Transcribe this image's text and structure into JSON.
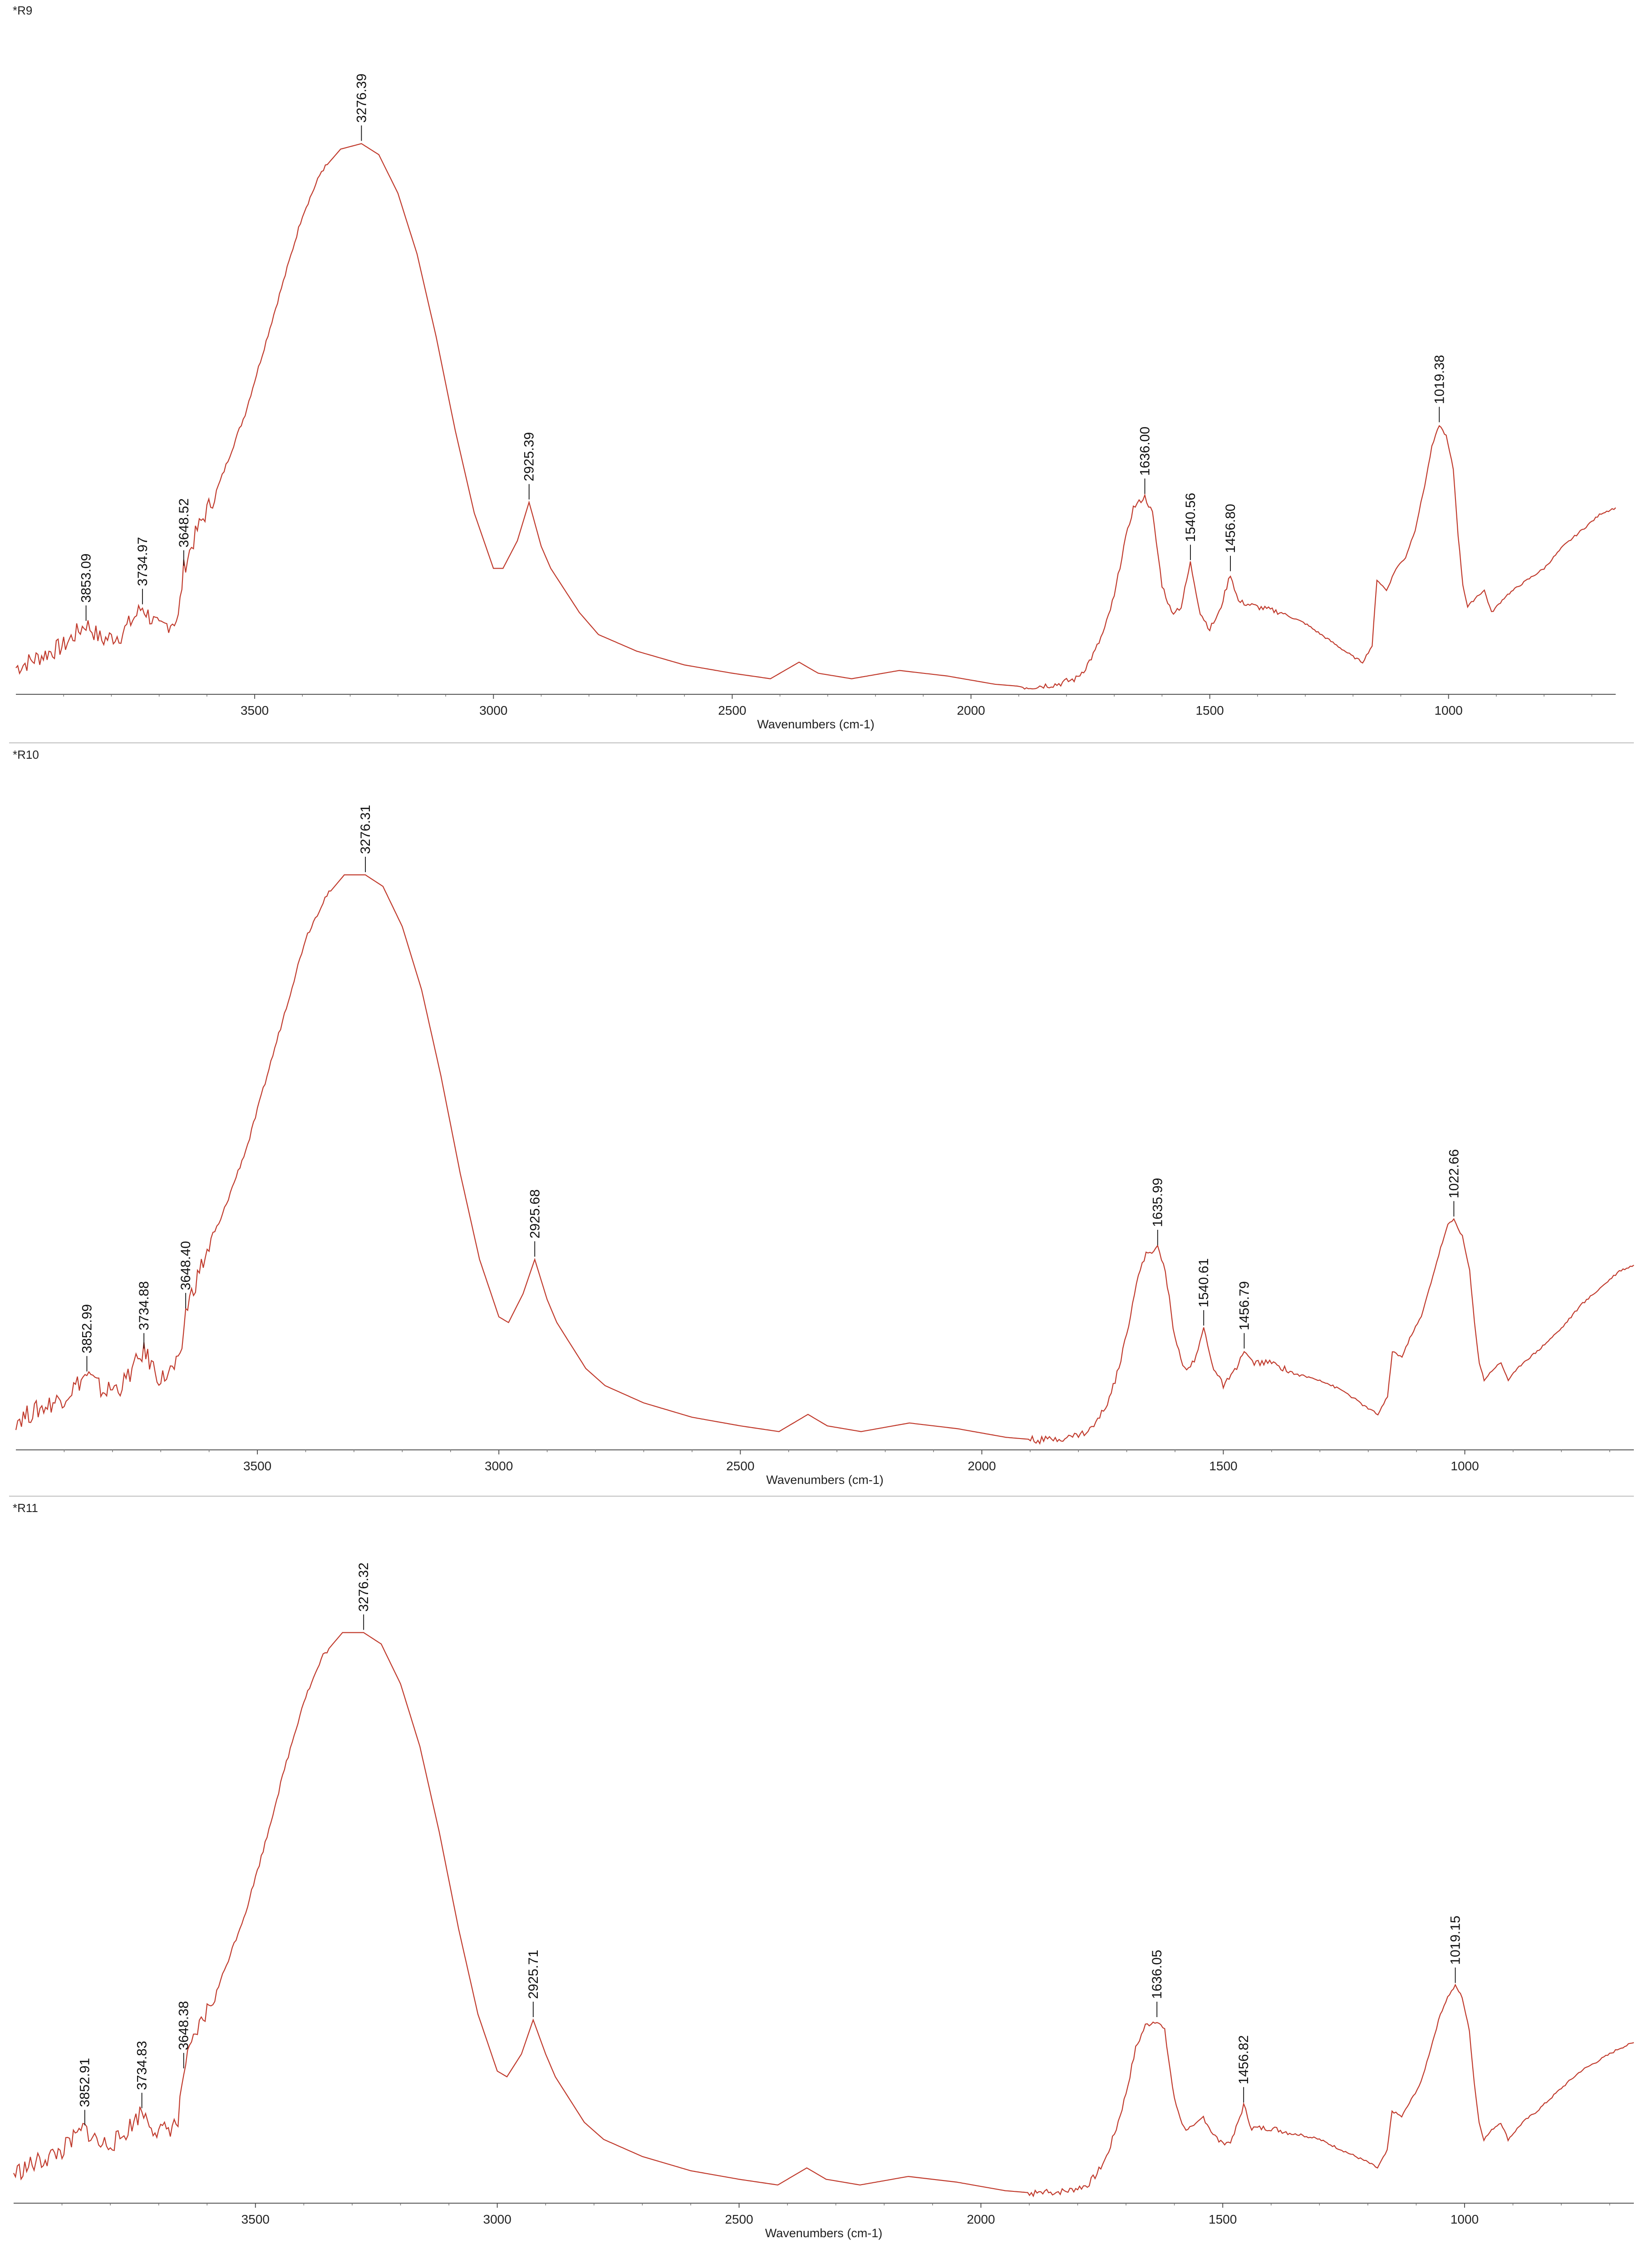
{
  "chart_data": [
    {
      "type": "line",
      "title": "*R9",
      "xlabel": "Wavenumbers (cm-1)",
      "ylabel": "",
      "x_ticks": [
        3500,
        3000,
        2500,
        2000,
        1500,
        1000
      ],
      "xlim": [
        4000,
        650
      ],
      "x_reversed": true,
      "grid": false,
      "line_color": "#c0392b",
      "series": [
        {
          "x": [
            4000,
            3950,
            3900,
            3853.09,
            3820,
            3780,
            3734.97,
            3700,
            3660,
            3648.52,
            3620,
            3580,
            3520,
            3480,
            3440,
            3400,
            3360,
            3320,
            3276.39,
            3240,
            3200,
            3160,
            3120,
            3080,
            3040,
            3000,
            2980,
            2950,
            2925.39,
            2900,
            2880,
            2850,
            2820,
            2780,
            2700,
            2600,
            2500,
            2420,
            2380,
            2360,
            2320,
            2250,
            2150,
            2050,
            1950,
            1880,
            1820,
            1780,
            1760,
            1740,
            1720,
            1700,
            1680,
            1660,
            1636.0,
            1620,
            1600,
            1580,
            1560,
            1540.56,
            1520,
            1500,
            1480,
            1456.8,
            1440,
            1400,
            1350,
            1300,
            1250,
            1200,
            1180,
            1160,
            1150,
            1130,
            1110,
            1090,
            1070,
            1050,
            1035,
            1019.38,
            1005,
            990,
            980,
            970,
            960,
            940,
            925,
            910,
            880,
            850,
            800,
            760,
            720,
            680,
            650
          ],
          "y": [
            0.02,
            0.04,
            0.06,
            0.1,
            0.07,
            0.08,
            0.13,
            0.09,
            0.11,
            0.2,
            0.27,
            0.34,
            0.48,
            0.6,
            0.72,
            0.84,
            0.92,
            0.96,
            0.97,
            0.95,
            0.88,
            0.77,
            0.62,
            0.45,
            0.3,
            0.2,
            0.2,
            0.25,
            0.32,
            0.24,
            0.2,
            0.16,
            0.12,
            0.08,
            0.05,
            0.025,
            0.01,
            0.0,
            0.02,
            0.03,
            0.01,
            0.0,
            0.015,
            0.005,
            -0.01,
            -0.015,
            -0.01,
            0.0,
            0.02,
            0.05,
            0.09,
            0.15,
            0.24,
            0.31,
            0.33,
            0.3,
            0.17,
            0.12,
            0.13,
            0.21,
            0.12,
            0.09,
            0.12,
            0.19,
            0.14,
            0.13,
            0.12,
            0.1,
            0.07,
            0.04,
            0.03,
            0.06,
            0.18,
            0.16,
            0.2,
            0.22,
            0.27,
            0.35,
            0.42,
            0.46,
            0.44,
            0.38,
            0.26,
            0.17,
            0.13,
            0.15,
            0.16,
            0.12,
            0.15,
            0.17,
            0.2,
            0.24,
            0.27,
            0.3,
            0.31
          ]
        }
      ],
      "peak_labels": [
        {
          "x": 3853.09,
          "label": "3853.09"
        },
        {
          "x": 3734.97,
          "label": "3734.97"
        },
        {
          "x": 3648.52,
          "label": "3648.52"
        },
        {
          "x": 3276.39,
          "label": "3276.39"
        },
        {
          "x": 2925.39,
          "label": "2925.39"
        },
        {
          "x": 1636.0,
          "label": "1636.00"
        },
        {
          "x": 1540.56,
          "label": "1540.56"
        },
        {
          "x": 1456.8,
          "label": "1456.80"
        },
        {
          "x": 1019.38,
          "label": "1019.38"
        }
      ]
    },
    {
      "type": "line",
      "title": "*R10",
      "xlabel": "Wavenumbers (cm-1)",
      "ylabel": "",
      "x_ticks": [
        3500,
        3000,
        2500,
        2000,
        1500,
        1000
      ],
      "xlim": [
        4000,
        650
      ],
      "x_reversed": true,
      "grid": false,
      "line_color": "#c0392b",
      "series": [
        {
          "x": [
            4000,
            3950,
            3900,
            3852.99,
            3820,
            3780,
            3734.88,
            3700,
            3660,
            3648.4,
            3620,
            3580,
            3520,
            3480,
            3440,
            3400,
            3360,
            3320,
            3276.31,
            3240,
            3200,
            3160,
            3120,
            3080,
            3040,
            3000,
            2980,
            2950,
            2925.68,
            2900,
            2880,
            2850,
            2820,
            2780,
            2700,
            2600,
            2500,
            2420,
            2380,
            2360,
            2320,
            2250,
            2150,
            2050,
            1950,
            1880,
            1820,
            1780,
            1760,
            1740,
            1720,
            1700,
            1680,
            1660,
            1635.99,
            1620,
            1600,
            1580,
            1560,
            1540.61,
            1520,
            1500,
            1480,
            1456.79,
            1440,
            1400,
            1350,
            1300,
            1250,
            1200,
            1180,
            1160,
            1150,
            1130,
            1110,
            1090,
            1070,
            1050,
            1035,
            1022.66,
            1005,
            990,
            980,
            970,
            960,
            940,
            925,
            910,
            880,
            850,
            800,
            760,
            720,
            680,
            650
          ],
          "y": [
            0.02,
            0.04,
            0.06,
            0.1,
            0.07,
            0.08,
            0.14,
            0.09,
            0.12,
            0.21,
            0.28,
            0.36,
            0.5,
            0.62,
            0.74,
            0.86,
            0.93,
            0.97,
            0.97,
            0.95,
            0.88,
            0.77,
            0.62,
            0.45,
            0.3,
            0.2,
            0.19,
            0.24,
            0.3,
            0.23,
            0.19,
            0.15,
            0.11,
            0.08,
            0.05,
            0.025,
            0.01,
            0.0,
            0.02,
            0.03,
            0.01,
            0.0,
            0.015,
            0.005,
            -0.01,
            -0.015,
            -0.01,
            0.0,
            0.02,
            0.05,
            0.1,
            0.17,
            0.26,
            0.31,
            0.32,
            0.28,
            0.16,
            0.11,
            0.12,
            0.18,
            0.11,
            0.08,
            0.1,
            0.14,
            0.12,
            0.12,
            0.1,
            0.09,
            0.07,
            0.04,
            0.03,
            0.06,
            0.14,
            0.13,
            0.17,
            0.2,
            0.26,
            0.32,
            0.36,
            0.37,
            0.34,
            0.28,
            0.19,
            0.12,
            0.09,
            0.11,
            0.12,
            0.09,
            0.12,
            0.14,
            0.18,
            0.22,
            0.25,
            0.28,
            0.29
          ]
        }
      ],
      "peak_labels": [
        {
          "x": 3852.99,
          "label": "3852.99"
        },
        {
          "x": 3734.88,
          "label": "3734.88"
        },
        {
          "x": 3648.4,
          "label": "3648.40"
        },
        {
          "x": 3276.31,
          "label": "3276.31"
        },
        {
          "x": 2925.68,
          "label": "2925.68"
        },
        {
          "x": 1635.99,
          "label": "1635.99"
        },
        {
          "x": 1540.61,
          "label": "1540.61"
        },
        {
          "x": 1456.79,
          "label": "1456.79"
        },
        {
          "x": 1022.66,
          "label": "1022.66"
        }
      ]
    },
    {
      "type": "line",
      "title": "*R11",
      "xlabel": "Wavenumbers (cm-1)",
      "ylabel": "",
      "x_ticks": [
        3500,
        3000,
        2500,
        2000,
        1500,
        1000
      ],
      "xlim": [
        4000,
        650
      ],
      "x_reversed": true,
      "grid": false,
      "line_color": "#c0392b",
      "series": [
        {
          "x": [
            4000,
            3950,
            3900,
            3852.91,
            3820,
            3780,
            3734.83,
            3700,
            3660,
            3648.38,
            3620,
            3580,
            3520,
            3480,
            3440,
            3400,
            3360,
            3320,
            3276.32,
            3240,
            3200,
            3160,
            3120,
            3080,
            3040,
            3000,
            2980,
            2950,
            2925.71,
            2900,
            2880,
            2850,
            2820,
            2780,
            2700,
            2600,
            2500,
            2420,
            2380,
            2360,
            2320,
            2250,
            2150,
            2050,
            1950,
            1880,
            1820,
            1780,
            1760,
            1740,
            1720,
            1700,
            1680,
            1660,
            1636.05,
            1620,
            1600,
            1580,
            1560,
            1540,
            1520,
            1500,
            1480,
            1456.82,
            1440,
            1400,
            1350,
            1300,
            1250,
            1200,
            1180,
            1160,
            1150,
            1130,
            1110,
            1090,
            1070,
            1050,
            1035,
            1019.15,
            1005,
            990,
            980,
            970,
            960,
            940,
            925,
            910,
            880,
            850,
            800,
            760,
            720,
            680,
            650
          ],
          "y": [
            0.02,
            0.04,
            0.06,
            0.1,
            0.07,
            0.08,
            0.13,
            0.09,
            0.11,
            0.2,
            0.27,
            0.34,
            0.48,
            0.6,
            0.73,
            0.85,
            0.93,
            0.97,
            0.97,
            0.95,
            0.88,
            0.77,
            0.62,
            0.45,
            0.3,
            0.2,
            0.19,
            0.23,
            0.29,
            0.23,
            0.19,
            0.15,
            0.11,
            0.08,
            0.05,
            0.025,
            0.01,
            0.0,
            0.02,
            0.03,
            0.01,
            0.0,
            0.015,
            0.005,
            -0.01,
            -0.015,
            -0.01,
            0.0,
            0.02,
            0.05,
            0.1,
            0.16,
            0.24,
            0.28,
            0.29,
            0.27,
            0.15,
            0.1,
            0.1,
            0.12,
            0.09,
            0.07,
            0.08,
            0.14,
            0.1,
            0.1,
            0.09,
            0.08,
            0.06,
            0.04,
            0.03,
            0.06,
            0.13,
            0.12,
            0.15,
            0.18,
            0.24,
            0.3,
            0.33,
            0.35,
            0.33,
            0.27,
            0.18,
            0.11,
            0.08,
            0.1,
            0.11,
            0.08,
            0.11,
            0.13,
            0.17,
            0.2,
            0.22,
            0.24,
            0.25
          ]
        }
      ],
      "peak_labels": [
        {
          "x": 3852.91,
          "label": "3852.91"
        },
        {
          "x": 3734.83,
          "label": "3734.83"
        },
        {
          "x": 3648.38,
          "label": "3648.38"
        },
        {
          "x": 3276.32,
          "label": "3276.32"
        },
        {
          "x": 2925.71,
          "label": "2925.71"
        },
        {
          "x": 1636.05,
          "label": "1636.05"
        },
        {
          "x": 1456.82,
          "label": "1456.82"
        },
        {
          "x": 1019.15,
          "label": "1019.15"
        }
      ]
    }
  ]
}
